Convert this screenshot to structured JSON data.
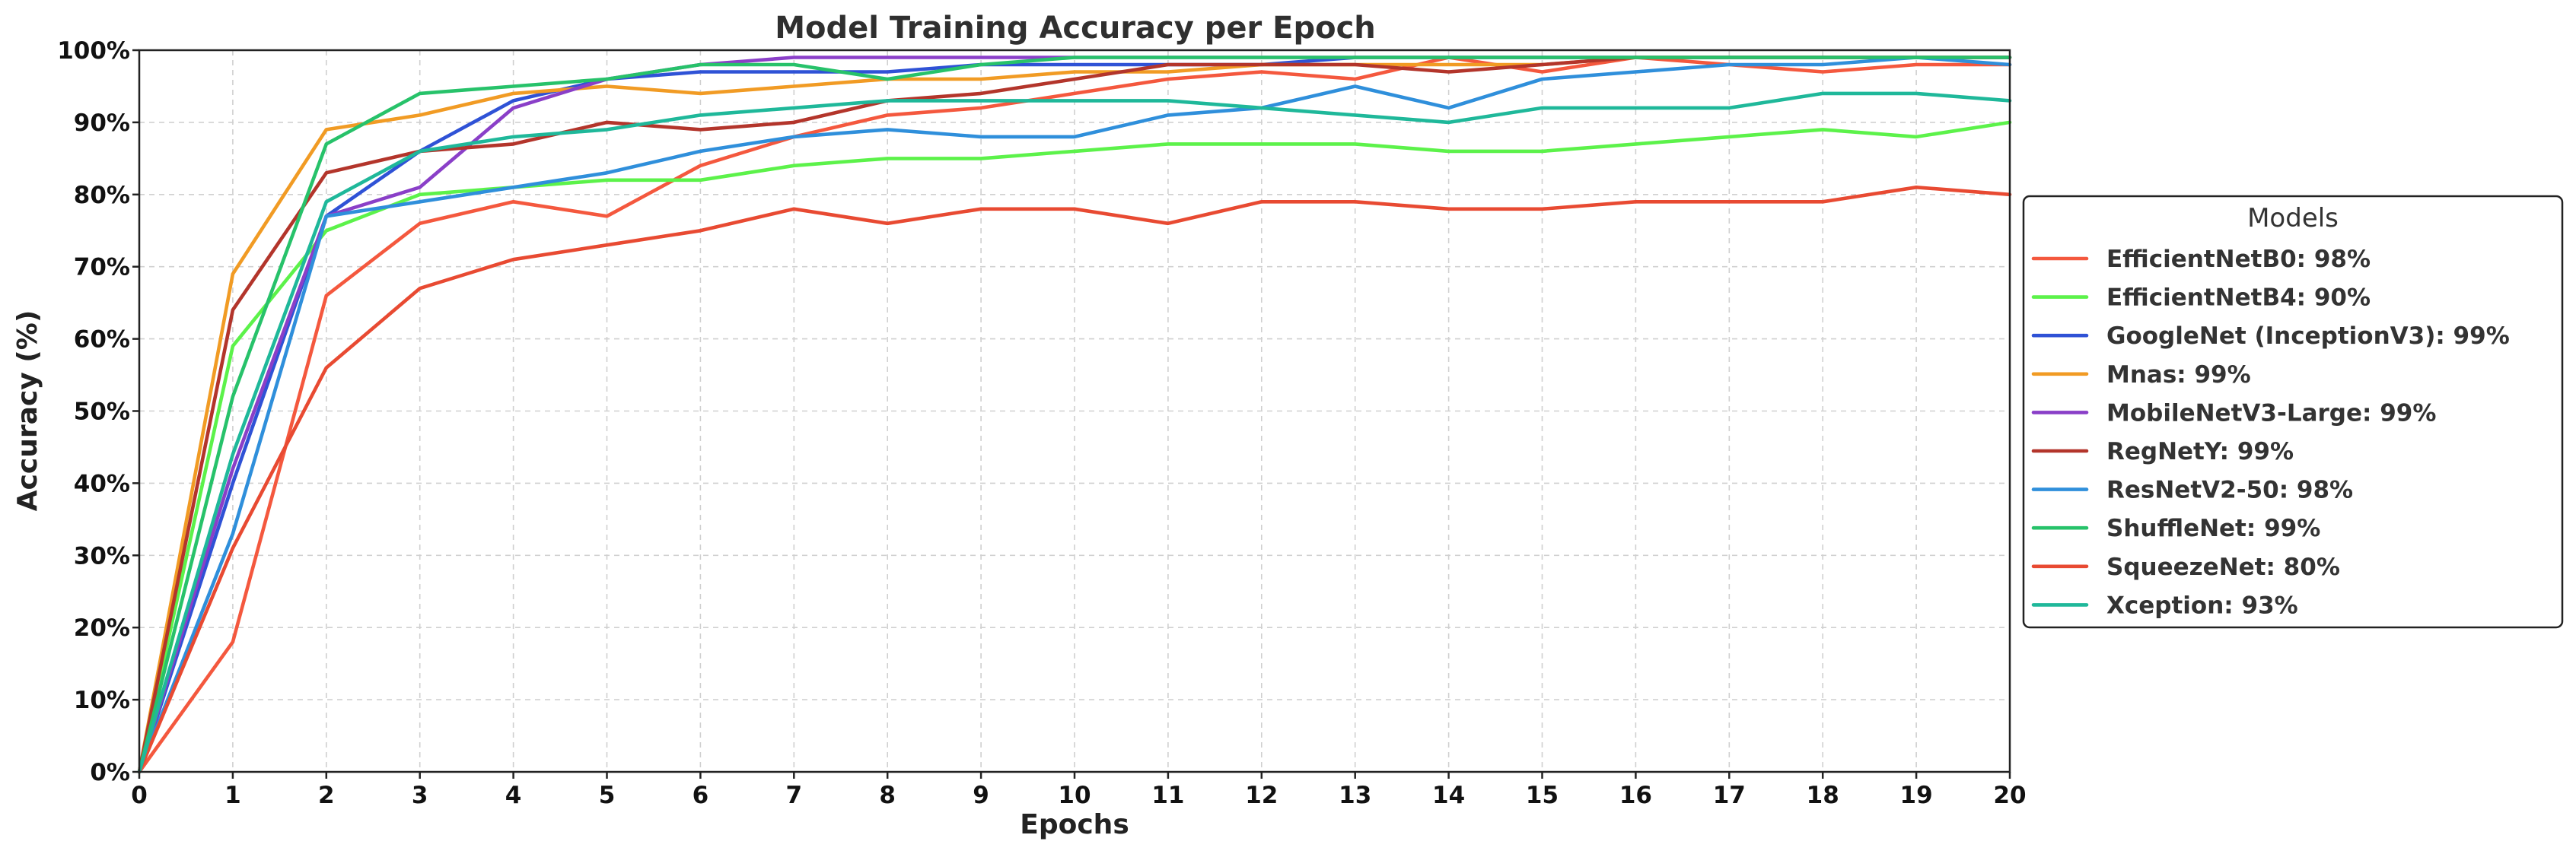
{
  "chart_data": {
    "type": "line",
    "title": "Model Training Accuracy per Epoch",
    "xlabel": "Epochs",
    "ylabel": "Accuracy (%)",
    "x": [
      0,
      1,
      2,
      3,
      4,
      5,
      6,
      7,
      8,
      9,
      10,
      11,
      12,
      13,
      14,
      15,
      16,
      17,
      18,
      19,
      20
    ],
    "xlim": [
      0,
      20
    ],
    "ylim": [
      0,
      100
    ],
    "y_ticks": [
      0,
      10,
      20,
      30,
      40,
      50,
      60,
      70,
      80,
      90,
      100
    ],
    "y_tick_labels": [
      "0%",
      "10%",
      "20%",
      "30%",
      "40%",
      "50%",
      "60%",
      "70%",
      "80%",
      "90%",
      "100%"
    ],
    "x_tick_labels": [
      "0",
      "1",
      "2",
      "3",
      "4",
      "5",
      "6",
      "7",
      "8",
      "9",
      "10",
      "11",
      "12",
      "13",
      "14",
      "15",
      "16",
      "17",
      "18",
      "19",
      "20"
    ],
    "grid": true,
    "legend": {
      "title": "Models",
      "placement": "right"
    },
    "series": [
      {
        "name": "EfficientNetB0: 98%",
        "color": "#f4583e",
        "values": [
          0,
          18,
          66,
          76,
          79,
          77,
          84,
          88,
          91,
          92,
          94,
          96,
          97,
          96,
          99,
          97,
          99,
          98,
          97,
          98,
          98
        ]
      },
      {
        "name": "EfficientNetB4: 90%",
        "color": "#5cf24a",
        "values": [
          0,
          59,
          75,
          80,
          81,
          82,
          82,
          84,
          85,
          85,
          86,
          87,
          87,
          87,
          86,
          86,
          87,
          88,
          89,
          88,
          90
        ]
      },
      {
        "name": "GoogleNet (InceptionV3): 99%",
        "color": "#2f52d6",
        "values": [
          0,
          40,
          77,
          86,
          93,
          96,
          97,
          97,
          97,
          98,
          98,
          98,
          98,
          99,
          99,
          99,
          99,
          99,
          99,
          99,
          99
        ]
      },
      {
        "name": "Mnas: 99%",
        "color": "#f19b24",
        "values": [
          0,
          69,
          89,
          91,
          94,
          95,
          94,
          95,
          96,
          96,
          97,
          97,
          98,
          98,
          98,
          98,
          99,
          99,
          99,
          99,
          99
        ]
      },
      {
        "name": "MobileNetV3-Large: 99%",
        "color": "#8a3fc8",
        "values": [
          0,
          42,
          77,
          81,
          92,
          96,
          98,
          99,
          99,
          99,
          99,
          99,
          99,
          99,
          99,
          99,
          99,
          99,
          99,
          99,
          99
        ]
      },
      {
        "name": "RegNetY: 99%",
        "color": "#b3352b",
        "values": [
          0,
          64,
          83,
          86,
          87,
          90,
          89,
          90,
          93,
          94,
          96,
          98,
          98,
          98,
          97,
          98,
          99,
          99,
          99,
          99,
          99
        ]
      },
      {
        "name": "ResNetV2-50: 98%",
        "color": "#2f8fdb",
        "values": [
          0,
          33,
          77,
          79,
          81,
          83,
          86,
          88,
          89,
          88,
          88,
          91,
          92,
          95,
          92,
          96,
          97,
          98,
          98,
          99,
          98
        ]
      },
      {
        "name": "ShuffleNet: 99%",
        "color": "#27c26a",
        "values": [
          0,
          52,
          87,
          94,
          95,
          96,
          98,
          98,
          96,
          98,
          99,
          99,
          99,
          99,
          99,
          99,
          99,
          99,
          99,
          99,
          99
        ]
      },
      {
        "name": "SqueezeNet: 80%",
        "color": "#e84a32",
        "values": [
          0,
          31,
          56,
          67,
          71,
          73,
          75,
          78,
          76,
          78,
          78,
          76,
          79,
          79,
          78,
          78,
          79,
          79,
          79,
          81,
          80
        ]
      },
      {
        "name": "Xception: 93%",
        "color": "#1fb89a",
        "values": [
          0,
          44,
          79,
          86,
          88,
          89,
          91,
          92,
          93,
          93,
          93,
          93,
          92,
          91,
          90,
          92,
          92,
          92,
          94,
          94,
          93
        ]
      }
    ]
  }
}
